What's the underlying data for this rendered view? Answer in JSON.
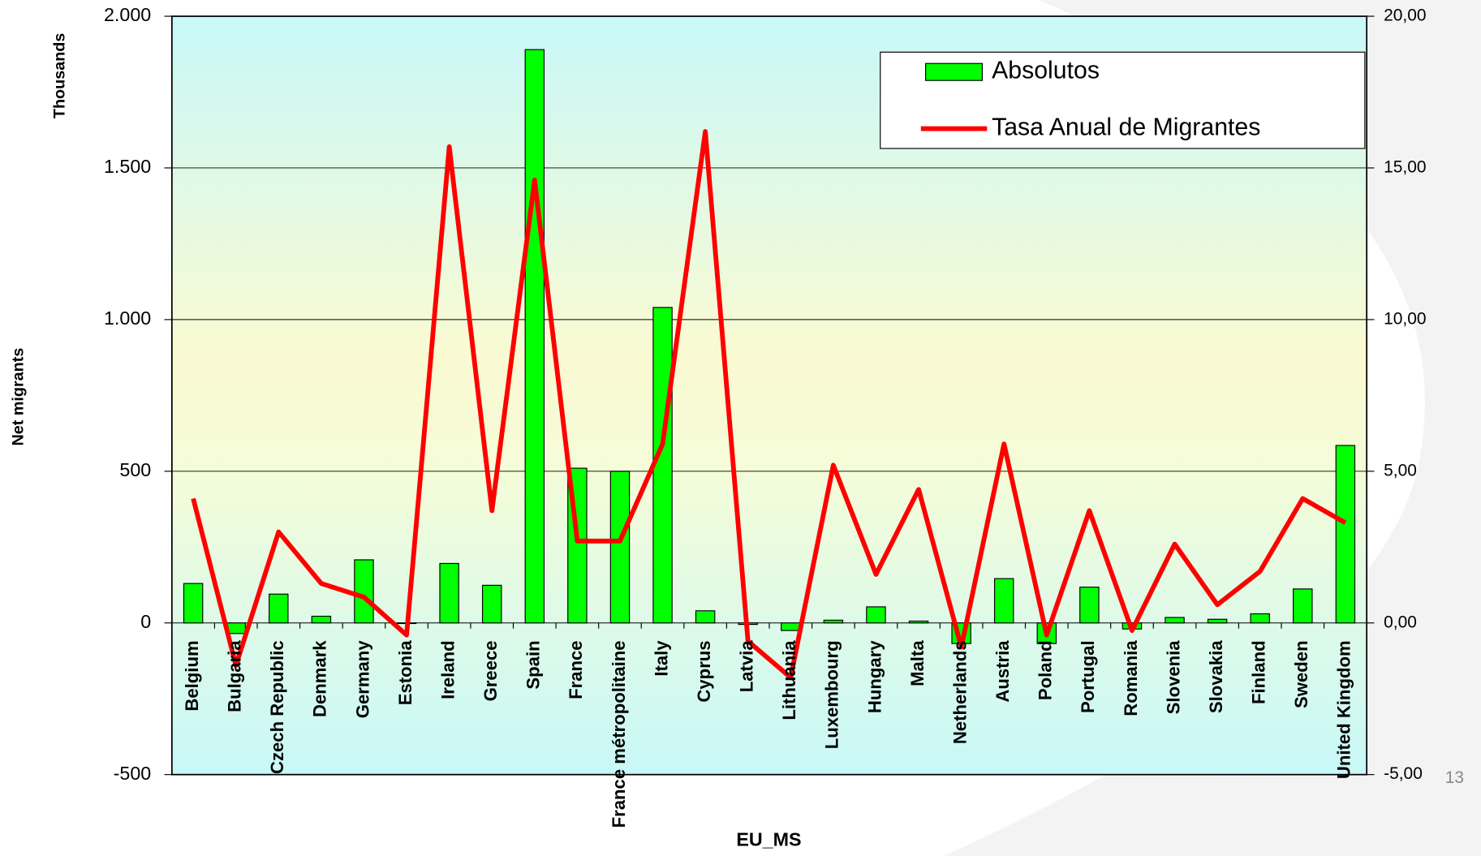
{
  "chart_data": {
    "type": "bar_line",
    "y_label_top": "Thousands",
    "y_label": "Net migrants",
    "x_label": "EU_MS",
    "page_number": "13",
    "categories": [
      "Belgium",
      "Bulgaria",
      "Czech Republic",
      "Denmark",
      "Germany",
      "Estonia",
      "Ireland",
      "Greece",
      "Spain",
      "France",
      "France métropolitaine",
      "Italy",
      "Cyprus",
      "Latvia",
      "Lithuania",
      "Luxembourg",
      "Hungary",
      "Malta",
      "Netherlands",
      "Austria",
      "Poland",
      "Portugal",
      "Romania",
      "Slovenia",
      "Slovakia",
      "Finland",
      "Sweden",
      "United Kingdom"
    ],
    "series": [
      {
        "name": "Absolutos",
        "type": "bar",
        "color": "#00ff00",
        "values": [
          130,
          -35,
          95,
          22,
          208,
          -2,
          196,
          124,
          1890,
          510,
          500,
          1040,
          40,
          -5,
          -25,
          9,
          53,
          6,
          -68,
          146,
          -68,
          118,
          -20,
          18,
          12,
          30,
          112,
          585
        ]
      },
      {
        "name": "Tasa Anual de Migrantes",
        "type": "line",
        "axis": "y2",
        "color": "#ff0000",
        "values": [
          4.1,
          -1.4,
          3.0,
          1.3,
          0.85,
          -0.4,
          15.7,
          3.7,
          14.6,
          2.7,
          2.7,
          5.9,
          16.2,
          -0.6,
          -1.8,
          5.2,
          1.6,
          4.4,
          -0.8,
          5.9,
          -0.4,
          3.7,
          -0.25,
          2.6,
          0.6,
          1.7,
          4.1,
          3.3
        ]
      }
    ],
    "ylim": [
      -500,
      2000
    ],
    "yticks": [
      -500,
      0,
      500,
      {
        "value": 1000,
        "label": "1.000"
      },
      {
        "value": 1500,
        "label": "1.500"
      },
      {
        "value": 2000,
        "label": "2.000"
      }
    ],
    "y2lim": [
      -5,
      20
    ],
    "y2ticks": [
      {
        "value": -5,
        "label": "-5,00"
      },
      {
        "value": 0,
        "label": "0,00"
      },
      {
        "value": 5,
        "label": "5,00"
      },
      {
        "value": 10,
        "label": "10,00"
      },
      {
        "value": 15,
        "label": "15,00"
      },
      {
        "value": 20,
        "label": "20,00"
      }
    ],
    "grid": true,
    "legend": "upper right"
  }
}
